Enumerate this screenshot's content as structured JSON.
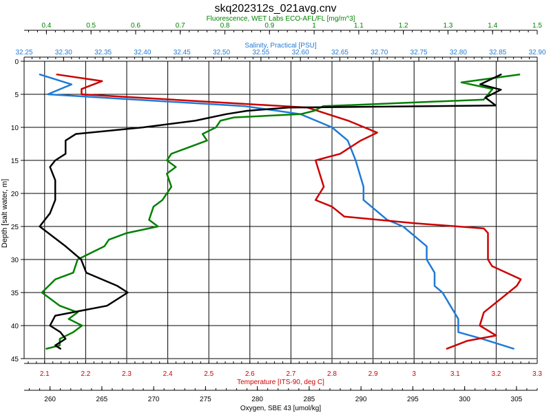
{
  "chart_data": {
    "type": "line",
    "title": "skq202312s_021avg.cnv",
    "grid": true,
    "ylabel": "Depth [salt water, m]",
    "ylim": [
      45,
      0
    ],
    "yticks": [
      0,
      5,
      10,
      15,
      20,
      25,
      30,
      35,
      40,
      45
    ],
    "axes": [
      {
        "id": "fluorescence",
        "label": "Fluorescence, WET Labs ECO-AFL/FL [mg/m^3]",
        "position": "top-outer",
        "color": "#008000",
        "range": [
          0.35,
          1.5
        ],
        "ticks": [
          0.4,
          0.5,
          0.6,
          0.7,
          0.8,
          0.9,
          1.0,
          1.1,
          1.2,
          1.3,
          1.4,
          1.5
        ],
        "tick_labels": [
          "0.4",
          "0.5",
          "0.6",
          "0.7",
          "0.8",
          "0.9",
          "1",
          "1.1",
          "1.2",
          "1.3",
          "1.4",
          "1.5"
        ]
      },
      {
        "id": "salinity",
        "label": "Salinity, Practical [PSU]",
        "position": "top-inner",
        "color": "#1f7ad6",
        "range": [
          32.25,
          32.9
        ],
        "ticks": [
          32.25,
          32.3,
          32.35,
          32.4,
          32.45,
          32.5,
          32.55,
          32.6,
          32.65,
          32.7,
          32.75,
          32.8,
          32.85,
          32.9
        ],
        "tick_labels": [
          "32.25",
          "32.30",
          "32.35",
          "32.40",
          "32.45",
          "32.50",
          "32.55",
          "32.60",
          "32.65",
          "32.70",
          "32.75",
          "32.80",
          "32.85",
          "32.90"
        ]
      },
      {
        "id": "temperature",
        "label": "Temperature [ITS-90, deg C]",
        "position": "bottom-inner",
        "color": "#cc0000",
        "range": [
          2.05,
          3.3
        ],
        "ticks": [
          2.1,
          2.2,
          2.3,
          2.4,
          2.5,
          2.6,
          2.7,
          2.8,
          2.9,
          3.0,
          3.1,
          3.2,
          3.3
        ],
        "tick_labels": [
          "2.1",
          "2.2",
          "2.3",
          "2.4",
          "2.5",
          "2.6",
          "2.7",
          "2.8",
          "2.9",
          "3",
          "3.1",
          "3.2",
          "3.3"
        ]
      },
      {
        "id": "oxygen",
        "label": "Oxygen, SBE 43 [umol/kg]",
        "position": "bottom-outer",
        "color": "#000000",
        "range": [
          257.5,
          307
        ],
        "ticks": [
          260,
          265,
          270,
          275,
          280,
          285,
          290,
          295,
          300,
          305
        ],
        "tick_labels": [
          "260",
          "265",
          "270",
          "275",
          "280",
          "285",
          "290",
          "295",
          "300",
          "305"
        ]
      }
    ],
    "series": [
      {
        "axis": "salinity",
        "color": "#1f7ad6",
        "points": [
          [
            32.27,
            2
          ],
          [
            32.31,
            3.5
          ],
          [
            32.28,
            5
          ],
          [
            32.53,
            6.8
          ],
          [
            32.6,
            8
          ],
          [
            32.62,
            9
          ],
          [
            32.64,
            10
          ],
          [
            32.66,
            12
          ],
          [
            32.67,
            15
          ],
          [
            32.68,
            19
          ],
          [
            32.68,
            21
          ],
          [
            32.69,
            22
          ],
          [
            32.71,
            24
          ],
          [
            32.73,
            25
          ],
          [
            32.75,
            27
          ],
          [
            32.76,
            28
          ],
          [
            32.76,
            30
          ],
          [
            32.77,
            32
          ],
          [
            32.77,
            34
          ],
          [
            32.78,
            35
          ],
          [
            32.79,
            37
          ],
          [
            32.8,
            39
          ],
          [
            32.8,
            41
          ],
          [
            32.83,
            42
          ],
          [
            32.87,
            43.5
          ]
        ]
      },
      {
        "axis": "temperature",
        "color": "#cc0000",
        "points": [
          [
            2.13,
            2
          ],
          [
            2.24,
            3
          ],
          [
            2.19,
            4.2
          ],
          [
            2.19,
            5
          ],
          [
            2.74,
            7
          ],
          [
            2.84,
            9
          ],
          [
            2.91,
            10.8
          ],
          [
            2.87,
            12
          ],
          [
            2.82,
            14
          ],
          [
            2.76,
            15
          ],
          [
            2.78,
            19
          ],
          [
            2.76,
            21
          ],
          [
            2.8,
            22
          ],
          [
            2.83,
            23.5
          ],
          [
            3.0,
            24.5
          ],
          [
            3.17,
            25.3
          ],
          [
            3.18,
            26
          ],
          [
            3.18,
            28
          ],
          [
            3.18,
            30
          ],
          [
            3.19,
            31
          ],
          [
            3.26,
            33
          ],
          [
            3.25,
            34
          ],
          [
            3.21,
            36
          ],
          [
            3.17,
            38
          ],
          [
            3.16,
            40
          ],
          [
            3.2,
            41.5
          ],
          [
            3.13,
            42.3
          ],
          [
            3.08,
            43.5
          ]
        ]
      },
      {
        "axis": "fluorescence",
        "color": "#008000",
        "points": [
          [
            1.46,
            2
          ],
          [
            1.33,
            3.2
          ],
          [
            1.4,
            4.2
          ],
          [
            1.38,
            5.8
          ],
          [
            1.02,
            6.8
          ],
          [
            1.0,
            7.5
          ],
          [
            0.97,
            8
          ],
          [
            0.82,
            8.5
          ],
          [
            0.79,
            9
          ],
          [
            0.78,
            10
          ],
          [
            0.75,
            11
          ],
          [
            0.76,
            12
          ],
          [
            0.72,
            13
          ],
          [
            0.68,
            14
          ],
          [
            0.67,
            15
          ],
          [
            0.69,
            16
          ],
          [
            0.67,
            17
          ],
          [
            0.68,
            19
          ],
          [
            0.67,
            20
          ],
          [
            0.66,
            21
          ],
          [
            0.64,
            22
          ],
          [
            0.63,
            24
          ],
          [
            0.65,
            25
          ],
          [
            0.58,
            26
          ],
          [
            0.54,
            27
          ],
          [
            0.53,
            28
          ],
          [
            0.47,
            30
          ],
          [
            0.46,
            32
          ],
          [
            0.42,
            33
          ],
          [
            0.39,
            35
          ],
          [
            0.43,
            37
          ],
          [
            0.47,
            38
          ],
          [
            0.45,
            39
          ],
          [
            0.48,
            40
          ],
          [
            0.46,
            41
          ],
          [
            0.43,
            42
          ],
          [
            0.43,
            43
          ],
          [
            0.4,
            43.5
          ]
        ]
      },
      {
        "axis": "oxygen",
        "color": "#000000",
        "points": [
          [
            303.5,
            2
          ],
          [
            301.5,
            3.5
          ],
          [
            303.5,
            4.3
          ],
          [
            302,
            5.5
          ],
          [
            303,
            6.7
          ],
          [
            283,
            7
          ],
          [
            279,
            7.5
          ],
          [
            277,
            8
          ],
          [
            274,
            9
          ],
          [
            269,
            10
          ],
          [
            262.5,
            11
          ],
          [
            261.5,
            12
          ],
          [
            261.5,
            14
          ],
          [
            260.5,
            15
          ],
          [
            260,
            16
          ],
          [
            260.5,
            18
          ],
          [
            260.5,
            21
          ],
          [
            260,
            23
          ],
          [
            259,
            25
          ],
          [
            261.5,
            28
          ],
          [
            263,
            30
          ],
          [
            263.5,
            32
          ],
          [
            266.5,
            34
          ],
          [
            267.5,
            35
          ],
          [
            265.5,
            37
          ],
          [
            260.5,
            38.5
          ],
          [
            260,
            40
          ],
          [
            261,
            41
          ],
          [
            261.5,
            42
          ],
          [
            260.5,
            43
          ],
          [
            261,
            43.5
          ]
        ]
      }
    ]
  }
}
